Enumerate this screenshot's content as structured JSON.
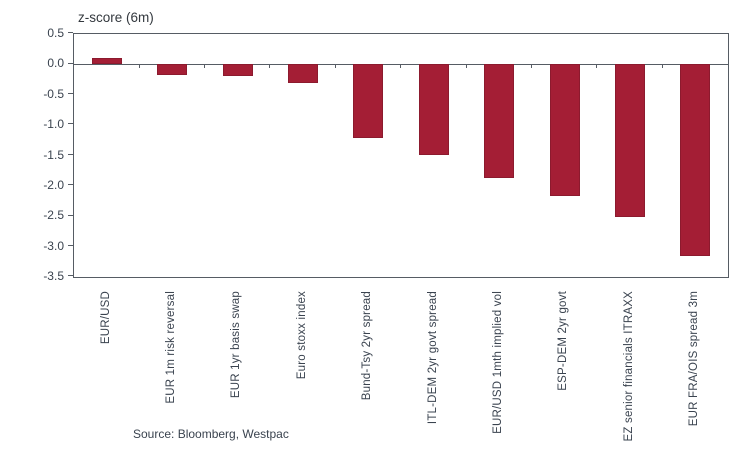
{
  "chart_data": {
    "type": "bar",
    "title": "z-score (6m)",
    "categories": [
      "EUR/USD",
      "EUR 1m risk reversal",
      "EUR 1yr basis swap",
      "Euro stoxx index",
      "Bund-Tsy 2yr spread",
      "ITL-DEM 2yr govt spread",
      "EUR/USD 1mth implied vol",
      "ESP-DEM 2yr govt",
      "EZ senior financials ITRAXX",
      "EUR FRA/OIS spread 3m"
    ],
    "values": [
      0.1,
      -0.18,
      -0.19,
      -0.31,
      -1.21,
      -1.49,
      -1.87,
      -2.17,
      -2.52,
      -3.16
    ],
    "xlabel": "",
    "ylabel": "z-score (6m)",
    "ylim": [
      -3.5,
      0.5
    ],
    "ytick_labels": [
      "0.5",
      "0.0",
      "-0.5",
      "-1.0",
      "-1.5",
      "-2.0",
      "-2.5",
      "-3.0",
      "-3.5"
    ],
    "ytick_values": [
      0.5,
      0.0,
      -0.5,
      -1.0,
      -1.5,
      -2.0,
      -2.5,
      -3.0,
      -3.5
    ],
    "grid": false,
    "legend_position": "none",
    "bar_color": "#a41e35",
    "bar_border_color": "#8c1a2e",
    "axis_color": "#565c64",
    "text_color": "#3a434f"
  },
  "footer": {
    "source": "Source: Bloomberg, Westpac"
  }
}
